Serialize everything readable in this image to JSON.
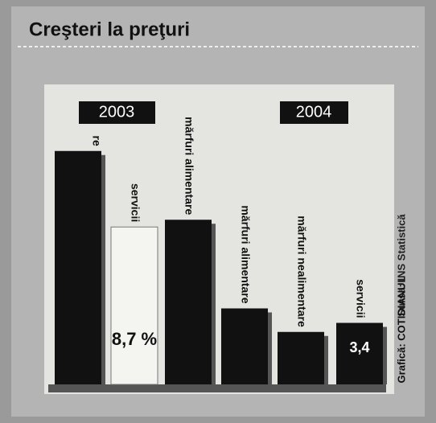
{
  "chart_data": {
    "type": "bar",
    "title": "Creşteri la preţuri",
    "groups": [
      "2003",
      "2004"
    ],
    "categories": [
      "re",
      "servicii",
      "mărfuri alimentare",
      "mărfuri alimentare",
      "mărfuri nealimentare",
      "servicii"
    ],
    "values": [
      12.9,
      8.7,
      9.1,
      4.2,
      2.9,
      3.4
    ],
    "value_labels": [
      null,
      "8,7 %",
      null,
      null,
      null,
      "3,4"
    ],
    "colors": [
      "#111111",
      "#f4f4f0",
      "#111111",
      "#111111",
      "#111111",
      "#111111"
    ],
    "source": "Sursa: INS Statistică",
    "credit": "Grafică: COTIDIANUL"
  }
}
